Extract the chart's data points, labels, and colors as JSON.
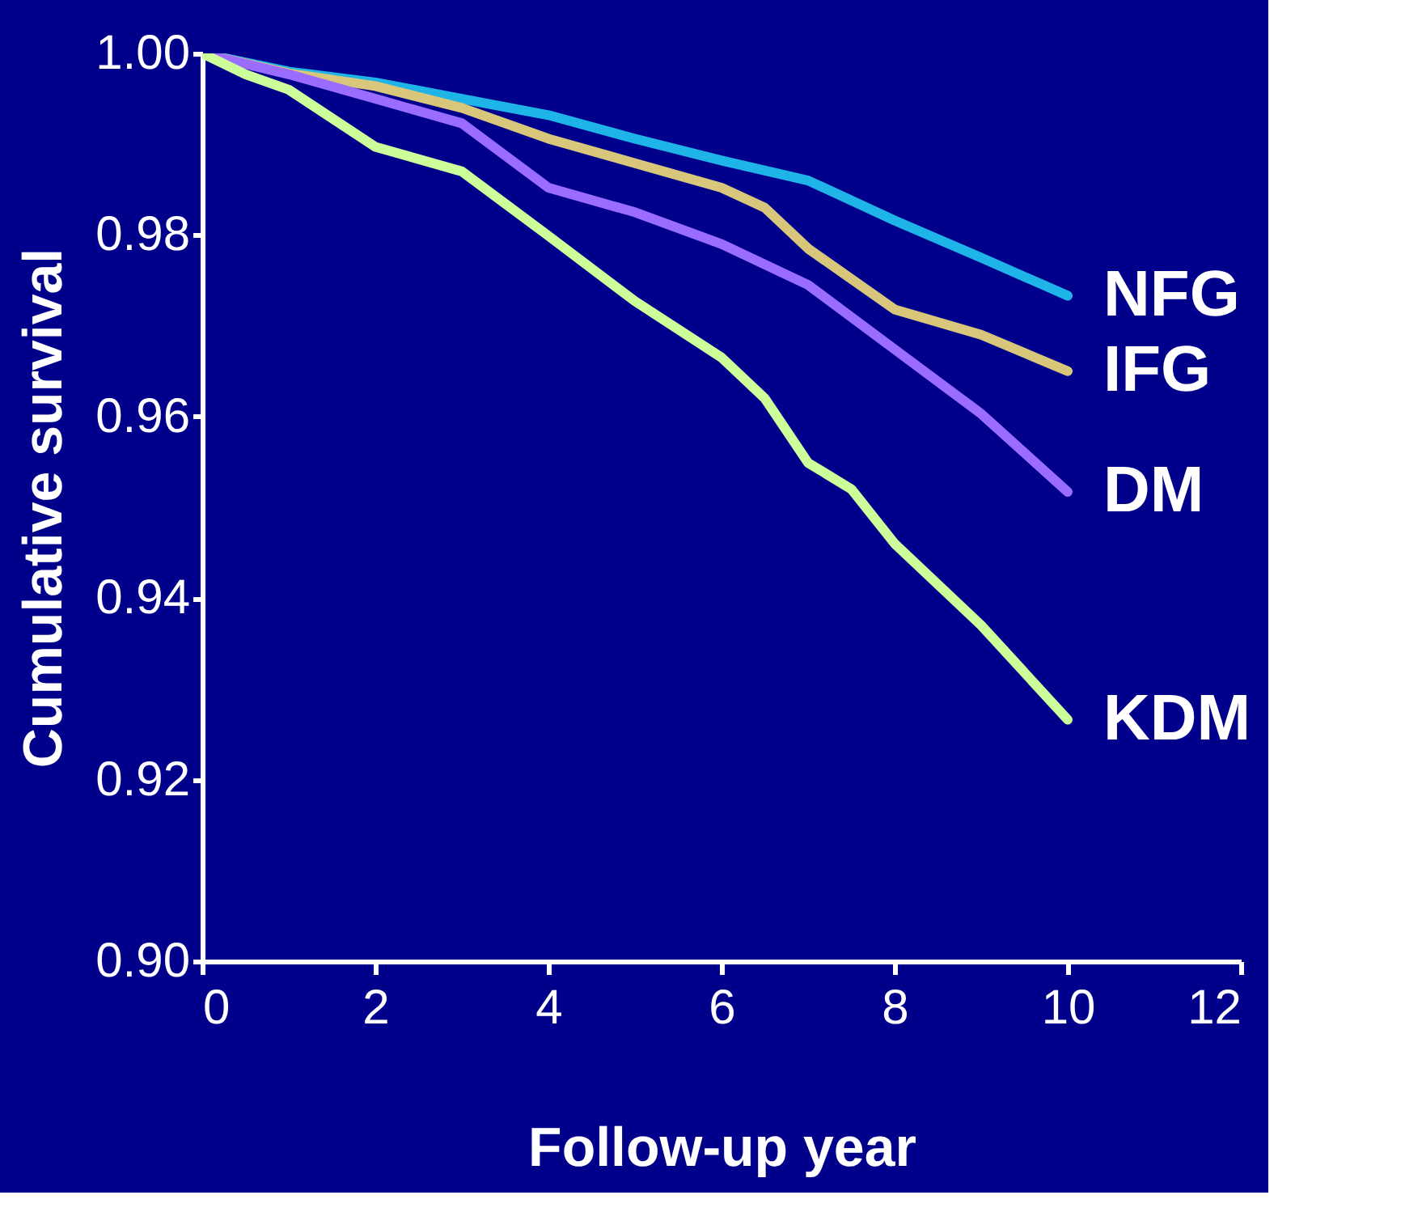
{
  "chart_data": {
    "type": "line",
    "xlabel": "Follow-up year",
    "ylabel": "Cumulative survival",
    "xlim": [
      0,
      12
    ],
    "xticks": [
      0,
      2,
      4,
      6,
      8,
      10,
      12
    ],
    "ylim": [
      0.9,
      1.0
    ],
    "yticks": [
      {
        "value": 0.9,
        "label": "0.90"
      },
      {
        "value": 0.92,
        "label": "0.92"
      },
      {
        "value": 0.94,
        "label": "0.94"
      },
      {
        "value": 0.96,
        "label": "0.96"
      },
      {
        "value": 0.98,
        "label": "0.98"
      },
      {
        "value": 1.0,
        "label": "1.00"
      }
    ],
    "grid": false,
    "legend": false,
    "marker": "none",
    "line_style": "solid",
    "series": [
      {
        "name": "NFG",
        "color": "#1fb4e8",
        "x": [
          0,
          1,
          2,
          3,
          4,
          5,
          6,
          7,
          8,
          9,
          10
        ],
        "values": [
          1.0,
          0.998,
          0.9968,
          0.995,
          0.9932,
          0.9906,
          0.9882,
          0.986,
          0.9816,
          0.9775,
          0.9733
        ]
      },
      {
        "name": "IFG",
        "color": "#d8c67a",
        "x": [
          0,
          1,
          2,
          3,
          4,
          5,
          6,
          6.5,
          7,
          8,
          9,
          10
        ],
        "values": [
          1.0,
          0.9978,
          0.9964,
          0.994,
          0.9906,
          0.9879,
          0.9852,
          0.983,
          0.9785,
          0.9718,
          0.969,
          0.965
        ]
      },
      {
        "name": "DM",
        "color": "#9a6cff",
        "x": [
          0,
          1,
          2,
          3,
          4,
          5,
          6,
          7,
          8,
          9,
          10
        ],
        "values": [
          1.0,
          0.9977,
          0.995,
          0.9923,
          0.9852,
          0.9825,
          0.979,
          0.9745,
          0.9674,
          0.9603,
          0.9517
        ]
      },
      {
        "name": "KDM",
        "color": "#ccff99",
        "x": [
          0,
          0.5,
          1,
          2,
          3,
          4,
          5,
          6,
          6.5,
          7,
          7.5,
          8,
          9,
          10
        ],
        "values": [
          1.0,
          0.9977,
          0.996,
          0.9897,
          0.987,
          0.9799,
          0.9727,
          0.9665,
          0.962,
          0.9549,
          0.952,
          0.946,
          0.937,
          0.9266
        ]
      }
    ]
  }
}
